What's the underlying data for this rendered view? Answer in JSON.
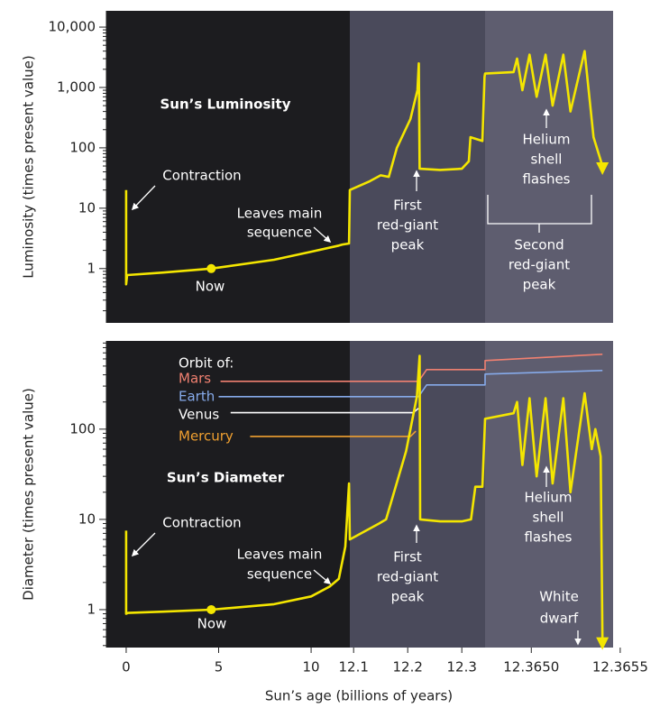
{
  "chart_data": {
    "type": "line",
    "xlabel": "Sun’s age (billions of years)",
    "x_segments": [
      {
        "xlim": [
          -1.07,
          12.093
        ],
        "xticks": [
          0,
          5,
          10
        ],
        "color": "#1c1c1f"
      },
      {
        "xlim": [
          12.093,
          12.343
        ],
        "xticks": [
          12.1,
          12.2,
          12.3
        ],
        "color": "#4a4a5b"
      },
      {
        "xlim": [
          12.36474,
          12.36546
        ],
        "xticks": [
          {
            "value": 12.365,
            "label": "12.3650"
          },
          12.3655
        ],
        "color": "#5e5d6f"
      }
    ],
    "color": "#f4e600",
    "panels": [
      {
        "title": "Sun’s Luminosity",
        "ylabel": "Luminosity (times present value)",
        "ylog": true,
        "ylim": [
          0.126,
          18600
        ],
        "yticks": [
          1,
          10,
          100,
          {
            "value": 1000,
            "label": "1,000"
          },
          {
            "value": 10000,
            "label": "10,000"
          }
        ],
        "x": [
          0,
          0,
          0.05,
          2,
          4.6,
          8,
          10,
          11.5,
          11.7,
          12.05,
          12.093,
          12.13,
          12.15,
          12.165,
          12.18,
          12.205,
          12.218,
          12.2205,
          12.222,
          12.26,
          12.3,
          12.313,
          12.316,
          12.338,
          12.342,
          12.36474,
          12.3649,
          12.36492,
          12.36495,
          12.36499,
          12.36503,
          12.36508,
          12.36512,
          12.36518,
          12.36522,
          12.3653,
          12.36535,
          12.3654
        ],
        "values": [
          20,
          0.55,
          0.78,
          0.86,
          1.0,
          1.4,
          1.9,
          2.4,
          2.5,
          2.6,
          20,
          28,
          35,
          33,
          100,
          300,
          900,
          2500,
          45,
          43,
          45,
          60,
          150,
          130,
          1500,
          1700,
          1800,
          3000,
          900,
          3500,
          700,
          3500,
          500,
          3500,
          400,
          4000,
          150,
          50
        ],
        "now": {
          "x": 4.6,
          "value": 1.0
        },
        "annotations": [
          [
            "Contraction"
          ],
          [
            "Now"
          ],
          [
            "Leaves main",
            "sequence"
          ],
          [
            "First",
            "red-giant",
            "peak"
          ],
          [
            "Helium",
            "shell",
            "flashes"
          ],
          [
            "Second",
            "red-giant",
            "peak"
          ]
        ]
      },
      {
        "title": "Sun’s Diameter",
        "ylabel": "Diameter (times present value)",
        "ylog": true,
        "ylim": [
          0.38,
          950
        ],
        "yticks": [
          1,
          10,
          100
        ],
        "x": [
          0,
          0,
          0.1,
          2,
          4.6,
          8,
          10,
          11,
          11.5,
          11.85,
          12.05,
          12.093,
          12.147,
          12.16,
          12.197,
          12.217,
          12.222,
          12.223,
          12.26,
          12.3,
          12.317,
          12.325,
          12.338,
          12.343,
          12.36474,
          12.3649,
          12.36492,
          12.36495,
          12.36499,
          12.36503,
          12.36508,
          12.36512,
          12.36518,
          12.36522,
          12.3653,
          12.36534,
          12.36536,
          12.36539,
          12.3654
        ],
        "values": [
          7.5,
          0.9,
          0.92,
          0.95,
          1.0,
          1.15,
          1.4,
          1.8,
          2.2,
          5,
          25,
          6,
          9,
          10,
          57,
          230,
          650,
          10,
          9.5,
          9.5,
          10,
          23,
          23,
          130,
          130,
          150,
          200,
          40,
          220,
          30,
          220,
          25,
          220,
          20,
          250,
          60,
          100,
          50,
          0.45
        ],
        "now": {
          "x": 4.6,
          "value": 1.0
        },
        "orbit_label": "Orbit of:",
        "series": [
          {
            "name": "Mars",
            "color": "#f08070",
            "x": [
              5.1,
              12.22,
              12.235,
              12.343,
              12.36474,
              12.3654
            ],
            "values": [
              339,
              339,
              457,
              457,
              575,
              676
            ]
          },
          {
            "name": "Earth",
            "color": "#86aaea",
            "x": [
              5.0,
              12.22,
              12.235,
              12.343,
              12.36474,
              12.3654
            ],
            "values": [
              229,
              229,
              309,
              309,
              407,
              447
            ]
          },
          {
            "name": "Venus",
            "color": "#ffffff",
            "x": [
              5.65,
              12.21,
              12.22
            ],
            "values": [
              152,
              152,
              170
            ]
          },
          {
            "name": "Mercury",
            "color": "#f0a030",
            "x": [
              6.7,
              12.205,
              12.215
            ],
            "values": [
              83,
              83,
              95
            ]
          }
        ],
        "annotations": [
          [
            "Contraction"
          ],
          [
            "Now"
          ],
          [
            "Leaves main",
            "sequence"
          ],
          [
            "First",
            "red-giant",
            "peak"
          ],
          [
            "Helium",
            "shell",
            "flashes"
          ],
          [
            "White",
            "dwarf"
          ]
        ]
      }
    ]
  }
}
